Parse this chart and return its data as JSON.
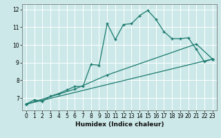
{
  "xlabel": "Humidex (Indice chaleur)",
  "bg_color": "#cce8e8",
  "grid_color": "#ffffff",
  "line_color": "#1a7a6e",
  "xlim": [
    -0.5,
    23.5
  ],
  "ylim": [
    6.3,
    12.3
  ],
  "xticks": [
    0,
    1,
    2,
    3,
    4,
    5,
    6,
    7,
    8,
    9,
    10,
    11,
    12,
    13,
    14,
    15,
    16,
    17,
    18,
    19,
    20,
    21,
    22,
    23
  ],
  "yticks": [
    7,
    8,
    9,
    10,
    11,
    12
  ],
  "series1_x": [
    0,
    1,
    2,
    3,
    4,
    5,
    6,
    7,
    8,
    9,
    10,
    11,
    12,
    13,
    14,
    15,
    16,
    17,
    18,
    19,
    20,
    21,
    22,
    23
  ],
  "series1_y": [
    6.65,
    6.9,
    6.8,
    7.1,
    7.25,
    7.45,
    7.65,
    7.65,
    8.9,
    8.85,
    11.2,
    10.3,
    11.15,
    11.2,
    11.65,
    11.95,
    11.45,
    10.75,
    10.35,
    10.35,
    10.4,
    9.75,
    9.05,
    9.2
  ],
  "series2_x": [
    0,
    23
  ],
  "series2_y": [
    6.65,
    9.2
  ],
  "series3_x": [
    0,
    6,
    10,
    21,
    23
  ],
  "series3_y": [
    6.65,
    7.5,
    8.3,
    10.05,
    9.2
  ]
}
